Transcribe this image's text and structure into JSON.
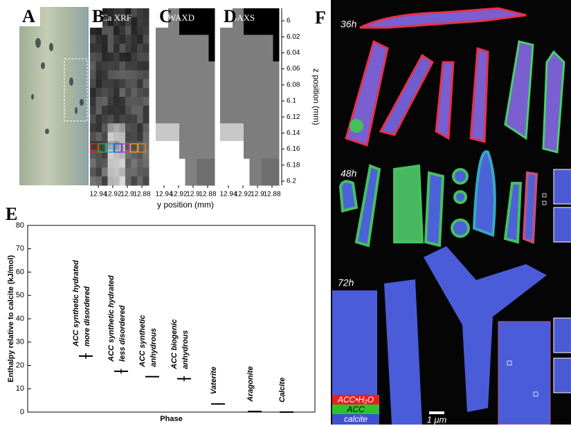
{
  "panels": {
    "a": "A",
    "b": "B",
    "c": "C",
    "d": "D",
    "e": "E",
    "f": "F"
  },
  "xrf_maps": {
    "titles": [
      "Ca XRF",
      "WAXD",
      "SAXS"
    ],
    "z_axis": {
      "label": "z position (mm)",
      "ticks": [
        6,
        6.02,
        6.04,
        6.06,
        6.08,
        6.1,
        6.12,
        6.14,
        6.16,
        6.18,
        6.2
      ]
    },
    "y_axis": {
      "label": "y position (mm)",
      "ticks": [
        12.94,
        12.92,
        12.9,
        12.88
      ]
    }
  },
  "chart_data": {
    "type": "errorbar",
    "ylabel": "Enthalpy relative  to calcite (kJ/mol)",
    "xlabel": "Phase",
    "categories": [
      [
        "ACC synthetic hydrated",
        "more disordered"
      ],
      [
        "ACC synthetic hydrated",
        "less disordered"
      ],
      [
        "ACC synthetic",
        "anhydrous"
      ],
      [
        "ACC biogenic",
        "anhydrous"
      ],
      [
        "Vaterite"
      ],
      [
        "Aragonite"
      ],
      [
        "Calcite"
      ]
    ],
    "values": [
      24,
      17.5,
      15.2,
      14.3,
      3.5,
      0.3,
      0
    ],
    "errors": [
      1.2,
      1,
      0,
      1.1,
      0.3,
      0,
      0
    ],
    "color": "#000000",
    "ylim": [
      0,
      80
    ],
    "yticks": [
      0,
      10,
      20,
      30,
      40,
      50,
      60,
      70,
      80
    ]
  },
  "sem_images": {
    "times": [
      "36h",
      "48h",
      "72h"
    ],
    "legend": [
      "ACC•H₂O",
      "ACC",
      "calcite"
    ],
    "scale_bar": "1 μm"
  }
}
